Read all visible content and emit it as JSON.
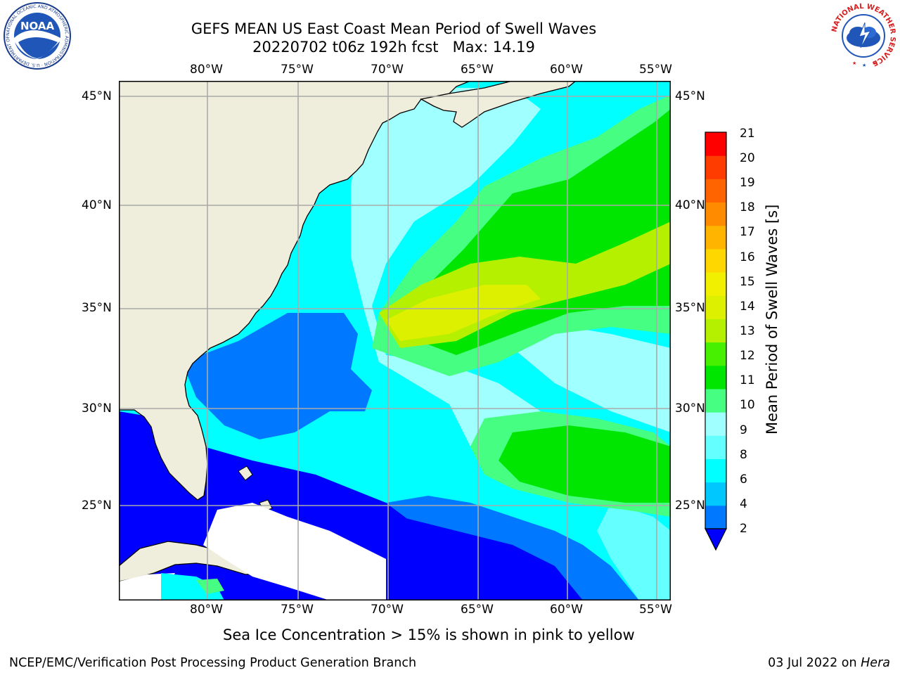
{
  "title": {
    "line1": "GEFS MEAN US East Coast Mean Period of Swell Waves",
    "line2": "20220702 t06z 192h fcst   Max: 14.19"
  },
  "map": {
    "lon_labels": [
      "80°W",
      "75°W",
      "70°W",
      "65°W",
      "60°W",
      "55°W"
    ],
    "lat_labels": [
      "45°N",
      "40°N",
      "35°N",
      "30°N",
      "25°N"
    ],
    "land_color": "#efeedd"
  },
  "colorbar": {
    "label": "Mean Period of Swell Waves [s]",
    "ticks": [
      "21",
      "20",
      "19",
      "18",
      "17",
      "16",
      "15",
      "14",
      "13",
      "12",
      "11",
      "10",
      "9",
      "8",
      "6",
      "4",
      "2"
    ],
    "colors": [
      "#0000ff",
      "#0078ff",
      "#00c8ff",
      "#00ffff",
      "#64ffff",
      "#a0ffff",
      "#46ff82",
      "#00e600",
      "#46f000",
      "#b4f000",
      "#dcf000",
      "#f0f000",
      "#ffd700",
      "#ffb400",
      "#ff8c00",
      "#ff6400",
      "#ff3c00",
      "#ff0000"
    ]
  },
  "logos": {
    "noaa_text": "NOAA",
    "noaa_ring": "NATIONAL OCEANIC AND ATMOSPHERIC ADMINISTRATION · U.S. DEPARTMENT OF COMMERCE",
    "nws_ring": "NATIONAL WEATHER SERVICE"
  },
  "note": "Sea Ice Concentration > 15% is shown in pink to yellow",
  "footer": {
    "left": "NCEP/EMC/Verification Post Processing Product Generation Branch",
    "right_prefix": "03 Jul 2022 on ",
    "right_host": "Hera"
  }
}
